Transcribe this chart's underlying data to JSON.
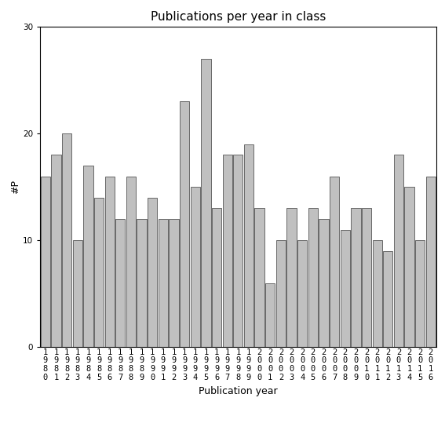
{
  "title": "Publications per year in class",
  "xlabel": "Publication year",
  "ylabel": "#P",
  "years": [
    "1980",
    "1981",
    "1982",
    "1983",
    "1984",
    "1985",
    "1986",
    "1987",
    "1988",
    "1989",
    "1990",
    "1991",
    "1992",
    "1993",
    "1994",
    "1995",
    "1996",
    "1997",
    "1998",
    "1999",
    "2000",
    "2001",
    "2002",
    "2003",
    "2004",
    "2005",
    "2006",
    "2007",
    "2008",
    "2009",
    "2010",
    "2011",
    "2012",
    "2013",
    "2014",
    "2015",
    "2016"
  ],
  "values": [
    16,
    18,
    20,
    10,
    17,
    14,
    16,
    12,
    16,
    12,
    14,
    12,
    12,
    23,
    15,
    27,
    13,
    18,
    18,
    19,
    13,
    6,
    10,
    13,
    10,
    13,
    12,
    16,
    11,
    13,
    13,
    10,
    9,
    18,
    15,
    10,
    16
  ],
  "bar_color": "#c0c0c0",
  "bar_edge_color": "#555555",
  "ylim": [
    0,
    30
  ],
  "yticks": [
    0,
    10,
    20,
    30
  ],
  "background_color": "#ffffff",
  "title_fontsize": 11,
  "axis_label_fontsize": 9,
  "tick_fontsize": 7.5
}
